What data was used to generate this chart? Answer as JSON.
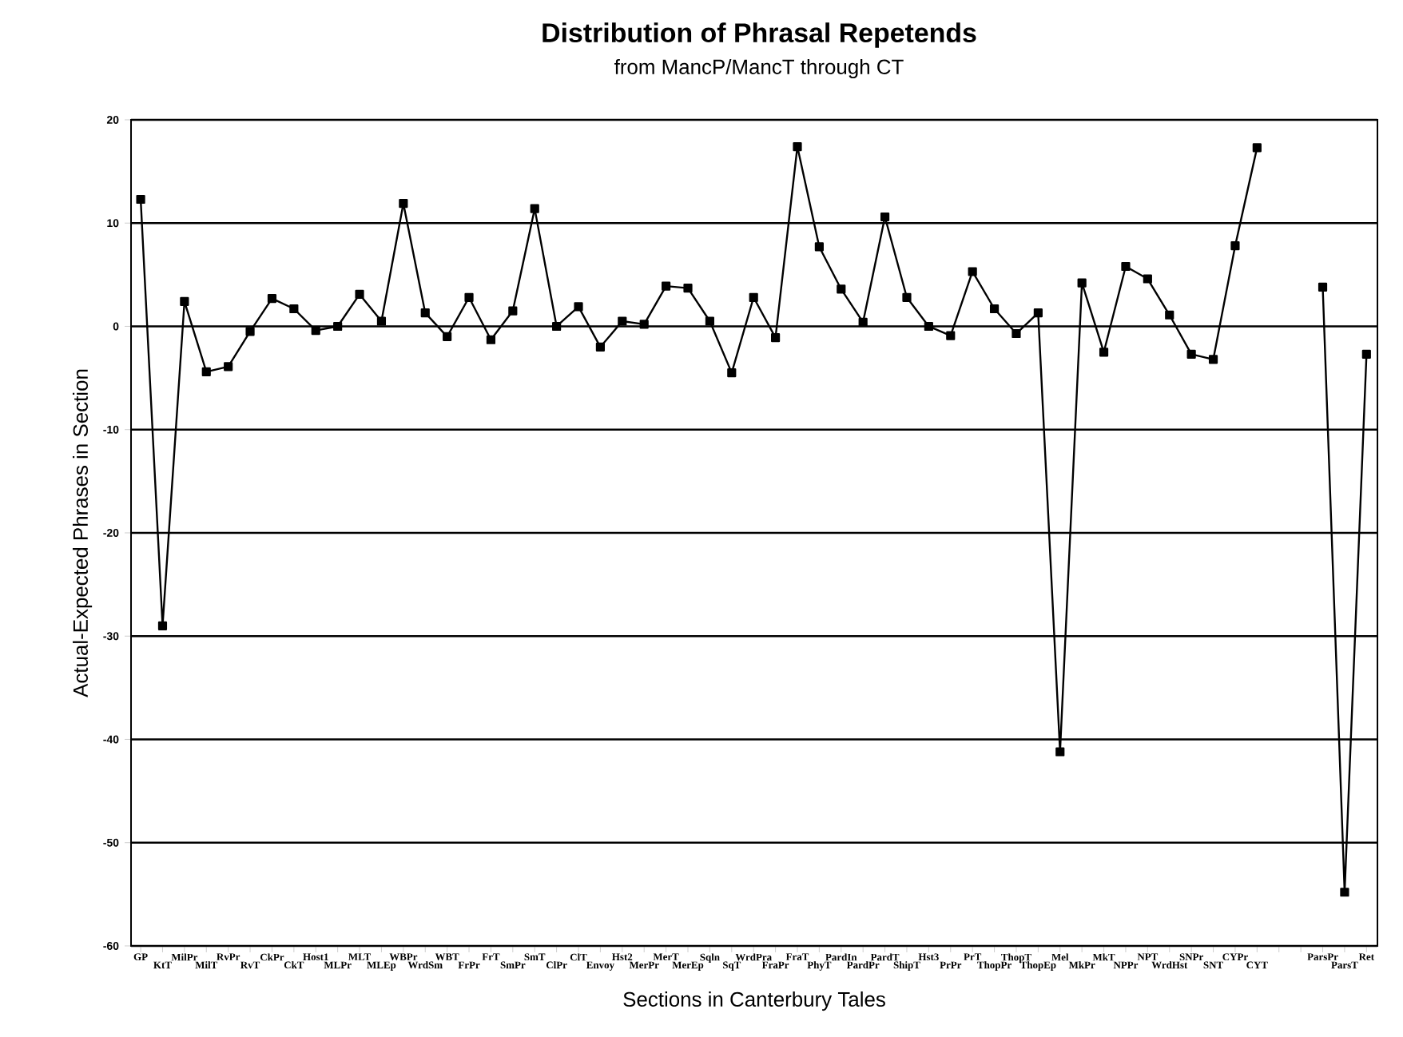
{
  "chart_data": {
    "type": "line",
    "title": "Distribution of Phrasal Repetends",
    "subtitle": "from MancP/MancT through CT",
    "xlabel": "Sections in Canterbury Tales",
    "ylabel": "Actual-Expected Phrases in Section",
    "categories": [
      "GP",
      "KtT",
      "MilPr",
      "MilT",
      "RvPr",
      "RvT",
      "CkPr",
      "CkT",
      "Host1",
      "MLPr",
      "MLT",
      "MLEp",
      "WBPr",
      "WrdSm",
      "WBT",
      "FrPr",
      "FrT",
      "SmPr",
      "SmT",
      "ClPr",
      "ClT",
      "Envoy",
      "Hst2",
      "MerPr",
      "MerT",
      "MerEp",
      "Sqln",
      "SqT",
      "WrdPra",
      "FraPr",
      "FraT",
      "PhyT",
      "PardIn",
      "PardPr",
      "PardT",
      "ShipT",
      "Hst3",
      "PrPr",
      "PrT",
      "ThopPr",
      "ThopT",
      "ThopEp",
      "Mel",
      "MkPr",
      "MkT",
      "NPPr",
      "NPT",
      "WrdHst",
      "SNPr",
      "SNT",
      "CYPr",
      "CYT",
      null,
      null,
      "ParsPr",
      "ParsT",
      "Ret"
    ],
    "values": [
      12.3,
      -29.0,
      2.4,
      -4.4,
      -3.9,
      -0.5,
      2.7,
      1.7,
      -0.4,
      0.0,
      3.1,
      0.5,
      11.9,
      1.3,
      -1.0,
      2.8,
      -1.3,
      1.5,
      11.4,
      0.0,
      1.9,
      -2.0,
      0.5,
      0.2,
      3.9,
      3.7,
      0.5,
      -4.5,
      2.8,
      -1.1,
      17.4,
      7.7,
      3.6,
      0.4,
      10.6,
      2.8,
      0.0,
      -0.9,
      5.3,
      1.7,
      -0.7,
      1.3,
      -41.2,
      4.2,
      -2.5,
      5.8,
      4.6,
      1.1,
      -2.7,
      -3.2,
      7.8,
      17.3,
      null,
      null,
      3.8,
      -54.8,
      -2.7
    ],
    "color": "#000000",
    "marker": "square",
    "line_style": "solid",
    "grid": "y",
    "ylim": [
      -60,
      20
    ],
    "yticks": [
      -60,
      -50,
      -40,
      -30,
      -20,
      -10,
      0,
      10,
      20
    ]
  }
}
